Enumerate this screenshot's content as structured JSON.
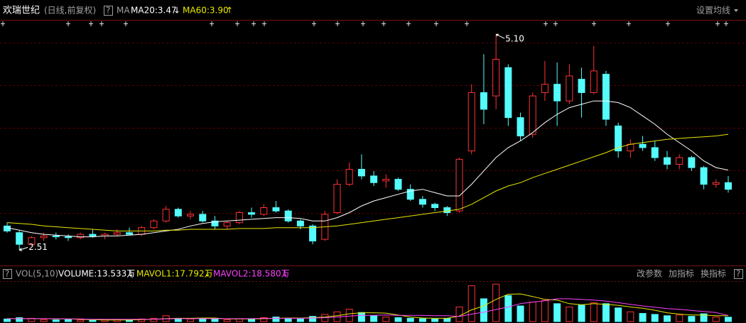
{
  "header": {
    "name": "欢瑞世纪",
    "period": "(日线,前复权)",
    "help": "?",
    "ma_label": "MA",
    "ma20": "MA20:3.47",
    "ma20_arrow": "↓",
    "ma60": "MA60:3.90",
    "ma60_arrow": "↑",
    "settings": "设置均线"
  },
  "volume_header": {
    "help": "?",
    "title": "VOL(5,10)",
    "volume": "VOLUME:13.533万",
    "volume_arrow": "↓",
    "mavol1": "MAVOL1:17.792万",
    "mavol1_arrow": "↓",
    "mavol2": "MAVOL2:18.580万",
    "mavol2_arrow": "↓",
    "buttons": [
      "改参数",
      "加指标",
      "换指标"
    ],
    "help2": "?"
  },
  "chart_data": [
    {
      "type": "candlestick",
      "ylim": [
        2.36,
        5.17
      ],
      "up_color": "#ff3232",
      "down_color": "#54fcfc",
      "annotations": [
        "5.10",
        "2.51"
      ],
      "ohlc": [
        [
          2.8,
          2.84,
          2.72,
          2.74
        ],
        [
          2.72,
          2.74,
          2.51,
          2.58
        ],
        [
          2.58,
          2.68,
          2.56,
          2.66
        ],
        [
          2.66,
          2.72,
          2.62,
          2.68
        ],
        [
          2.68,
          2.72,
          2.64,
          2.67
        ],
        [
          2.67,
          2.7,
          2.62,
          2.66
        ],
        [
          2.66,
          2.72,
          2.64,
          2.7
        ],
        [
          2.7,
          2.76,
          2.66,
          2.68
        ],
        [
          2.68,
          2.72,
          2.64,
          2.7
        ],
        [
          2.7,
          2.76,
          2.68,
          2.72
        ],
        [
          2.72,
          2.78,
          2.7,
          2.7
        ],
        [
          2.7,
          2.8,
          2.68,
          2.78
        ],
        [
          2.78,
          2.88,
          2.76,
          2.86
        ],
        [
          2.86,
          3.04,
          2.84,
          3.0
        ],
        [
          3.0,
          3.02,
          2.9,
          2.92
        ],
        [
          2.92,
          2.98,
          2.88,
          2.94
        ],
        [
          2.94,
          2.98,
          2.84,
          2.86
        ],
        [
          2.86,
          2.92,
          2.76,
          2.8
        ],
        [
          2.8,
          2.86,
          2.76,
          2.84
        ],
        [
          2.84,
          2.98,
          2.82,
          2.96
        ],
        [
          2.96,
          3.02,
          2.9,
          2.94
        ],
        [
          2.94,
          3.06,
          2.92,
          3.02
        ],
        [
          3.02,
          3.1,
          2.96,
          2.98
        ],
        [
          2.98,
          3.0,
          2.84,
          2.86
        ],
        [
          2.86,
          2.88,
          2.76,
          2.8
        ],
        [
          2.8,
          2.82,
          2.58,
          2.62
        ],
        [
          2.64,
          2.98,
          2.62,
          2.94
        ],
        [
          2.96,
          3.36,
          2.94,
          3.3
        ],
        [
          3.3,
          3.56,
          3.28,
          3.48
        ],
        [
          3.48,
          3.66,
          3.36,
          3.4
        ],
        [
          3.4,
          3.46,
          3.28,
          3.32
        ],
        [
          3.34,
          3.42,
          3.26,
          3.36
        ],
        [
          3.36,
          3.38,
          3.22,
          3.24
        ],
        [
          3.24,
          3.3,
          3.1,
          3.12
        ],
        [
          3.12,
          3.16,
          3.02,
          3.06
        ],
        [
          3.06,
          3.08,
          2.98,
          3.02
        ],
        [
          3.02,
          3.04,
          2.92,
          2.96
        ],
        [
          2.98,
          3.62,
          2.96,
          3.6
        ],
        [
          3.7,
          4.5,
          3.66,
          4.4
        ],
        [
          4.4,
          4.86,
          4.02,
          4.2
        ],
        [
          4.36,
          5.1,
          4.2,
          4.8
        ],
        [
          4.7,
          4.74,
          4.0,
          4.1
        ],
        [
          4.1,
          4.16,
          3.82,
          3.88
        ],
        [
          3.9,
          4.4,
          3.86,
          4.36
        ],
        [
          4.4,
          4.78,
          4.3,
          4.5
        ],
        [
          4.5,
          4.76,
          4.0,
          4.3
        ],
        [
          4.3,
          4.74,
          4.26,
          4.6
        ],
        [
          4.56,
          4.7,
          4.1,
          4.4
        ],
        [
          4.4,
          4.96,
          4.38,
          4.66
        ],
        [
          4.62,
          4.66,
          4.0,
          4.08
        ],
        [
          4.0,
          4.04,
          3.62,
          3.7
        ],
        [
          3.7,
          3.84,
          3.62,
          3.78
        ],
        [
          3.78,
          3.88,
          3.7,
          3.74
        ],
        [
          3.74,
          3.82,
          3.58,
          3.62
        ],
        [
          3.62,
          3.7,
          3.48,
          3.54
        ],
        [
          3.54,
          3.66,
          3.48,
          3.62
        ],
        [
          3.62,
          3.64,
          3.46,
          3.5
        ],
        [
          3.5,
          3.52,
          3.24,
          3.3
        ],
        [
          3.3,
          3.36,
          3.26,
          3.32
        ],
        [
          3.32,
          3.4,
          3.2,
          3.24
        ]
      ],
      "series": [
        {
          "color": "#ffffff",
          "values": [
            2.78,
            2.75,
            2.72,
            2.7,
            2.69,
            2.68,
            2.67,
            2.67,
            2.68,
            2.68,
            2.69,
            2.7,
            2.72,
            2.74,
            2.76,
            2.8,
            2.83,
            2.85,
            2.86,
            2.87,
            2.88,
            2.89,
            2.9,
            2.9,
            2.89,
            2.86,
            2.86,
            2.9,
            2.96,
            3.04,
            3.1,
            3.14,
            3.18,
            3.22,
            3.24,
            3.2,
            3.16,
            3.16,
            3.3,
            3.46,
            3.62,
            3.74,
            3.82,
            3.92,
            4.04,
            4.14,
            4.22,
            4.26,
            4.3,
            4.3,
            4.28,
            4.22,
            4.12,
            4.02,
            3.9,
            3.8,
            3.7,
            3.58,
            3.5,
            3.47
          ]
        },
        {
          "color": "#e8e800",
          "values": [
            2.84,
            2.83,
            2.82,
            2.8,
            2.79,
            2.78,
            2.77,
            2.76,
            2.75,
            2.74,
            2.74,
            2.74,
            2.74,
            2.75,
            2.75,
            2.76,
            2.76,
            2.76,
            2.76,
            2.77,
            2.77,
            2.77,
            2.78,
            2.78,
            2.78,
            2.78,
            2.79,
            2.8,
            2.82,
            2.84,
            2.86,
            2.88,
            2.9,
            2.92,
            2.94,
            2.96,
            2.98,
            3.0,
            3.06,
            3.14,
            3.22,
            3.28,
            3.32,
            3.38,
            3.43,
            3.48,
            3.53,
            3.58,
            3.63,
            3.68,
            3.74,
            3.78,
            3.8,
            3.82,
            3.84,
            3.85,
            3.86,
            3.87,
            3.88,
            3.9
          ]
        }
      ]
    },
    {
      "type": "bar",
      "ylim": [
        0,
        120
      ],
      "values": [
        8,
        12,
        10,
        6,
        5,
        6,
        5,
        4,
        5,
        6,
        5,
        8,
        10,
        18,
        10,
        8,
        9,
        8,
        6,
        9,
        8,
        12,
        14,
        10,
        8,
        16,
        22,
        30,
        38,
        28,
        18,
        14,
        12,
        10,
        9,
        8,
        10,
        45,
        110,
        70,
        115,
        80,
        48,
        60,
        65,
        55,
        45,
        50,
        58,
        55,
        42,
        30,
        25,
        22,
        18,
        20,
        16,
        24,
        14,
        13.533
      ],
      "series": [
        {
          "color": "#e8e800",
          "values": [
            9,
            9,
            9,
            9,
            8,
            8,
            7,
            6,
            5,
            5,
            5,
            6,
            7,
            9,
            10,
            10,
            11,
            11,
            8,
            8,
            8,
            9,
            10,
            11,
            11,
            12,
            14,
            18,
            24,
            27,
            27,
            26,
            20,
            14,
            11,
            10,
            10,
            17,
            36,
            48,
            68,
            84,
            85,
            77,
            68,
            66,
            55,
            52,
            55,
            53,
            50,
            45,
            41,
            35,
            27,
            23,
            20,
            20,
            18,
            17.792
          ]
        },
        {
          "color": "#ff40ff",
          "values": [
            9,
            9,
            9,
            9,
            9,
            8,
            8,
            7,
            7,
            7,
            7,
            7,
            7,
            8,
            9,
            9,
            9,
            9,
            9,
            9,
            9,
            10,
            10,
            10,
            10,
            11,
            12,
            14,
            17,
            19,
            19,
            20,
            19,
            19,
            19,
            18,
            18,
            16,
            23,
            29,
            37,
            45,
            55,
            60,
            64,
            70,
            70,
            68,
            66,
            63,
            58,
            53,
            48,
            44,
            40,
            38,
            34,
            31,
            28,
            18.58
          ]
        }
      ]
    }
  ]
}
